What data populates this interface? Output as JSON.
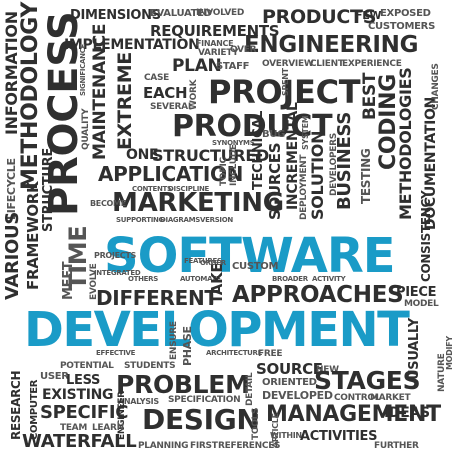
{
  "words": {
    "software": "SOFTWARE",
    "development": "DEVELOPMENT",
    "engineering": "ENGINEERING",
    "project": "PROJECT",
    "product": "PRODUCT",
    "process": "PROCESS",
    "application": "APPLICATION",
    "marketing": "MARKETING",
    "design": "DESIGN",
    "management": "MANAGEMENT",
    "problem": "PROBLEM",
    "stages": "STAGES",
    "approaches": "APPROACHES",
    "different": "DIFFERENT",
    "methodology": "METHODOLOGY",
    "information": "INFORMATION",
    "products": "PRODUCTS",
    "requirements": "REQUIREMENTS",
    "implementation": "IMPLEMENTATION",
    "maintenance": "MAINTENANCE",
    "extreme": "EXTREME",
    "plan": "PLAN",
    "each": "EACH",
    "structured": "STRUCTURED",
    "business": "BUSINESS",
    "methodologies": "METHODOLOGIES",
    "coding": "CODING",
    "testing": "TESTING",
    "documentation": "DOCUMENTATION",
    "consistency": "CONSISTENCY",
    "structure": "STRUCTURE",
    "framework": "FRAMEWORK",
    "various": "VARIOUS",
    "lifecycle": "LIFECYCLE",
    "research": "RESEARCH",
    "waterfall": "WATERFALL",
    "specific": "SPECIFIC",
    "existing": "EXISTING",
    "less": "LESS",
    "source": "SOURCE",
    "piece": "PIECE",
    "ideas": "IDEAS",
    "time": "TIME",
    "sources": "SOURCES",
    "solution": "SOLUTION",
    "technical": "TECHNICAL",
    "incremental": "INCREMENTAL",
    "developed": "DEVELOPED",
    "activities": "ACTIVITIES",
    "oriented": "ORIENTED",
    "dimensions": "DIMENSIONS",
    "evaluated": "EVALUATED",
    "involved": "INVOLVED",
    "few": "FEW",
    "exposed": "EXPOSED",
    "customers": "CUSTOMERS",
    "overview": "OVERVIEW",
    "client": "CLIENT",
    "experience": "EXPERIENCE",
    "best": "BEST",
    "learn": "LEARN",
    "team": "TEAM",
    "planning": "PLANNING",
    "first": "FIRST",
    "references": "REFERENCES",
    "market": "MARKET",
    "new": "NEW",
    "control": "CONTROL",
    "specification": "SPECIFICATION",
    "custom": "CUSTOM",
    "free": "FREE",
    "detail": "DETAIL",
    "usually": "USUALLY",
    "model": "MODEL",
    "potential": "POTENTIAL",
    "students": "STUDENTS",
    "ensure": "ENSURE",
    "phase": "PHASE",
    "take": "TAKE",
    "meet": "MEET",
    "several": "SEVERAL",
    "staff": "STAFF",
    "case": "CASE",
    "bug": "BUG",
    "one": "ONE",
    "further": "FURTHER",
    "engineer": "ENGINEER",
    "user": "USER",
    "computer": "COMPUTER",
    "analysis": "ANALYSIS",
    "tools": "TOOLS",
    "developers": "DEVELOPERS",
    "quality": "QUALITY",
    "significance": "SIGNIFICANCE",
    "changes": "CHANGES",
    "evolve": "EVOLVE",
    "become": "BECOME",
    "topic": "TOPIC",
    "include": "INCLUDE",
    "system": "SYSTEM",
    "deployment": "DEPLOYMENT",
    "finance": "FINANCE",
    "variety": "VARIETY",
    "over": "OVER",
    "work": "WORK",
    "article": "ARTICLE",
    "spent": "SPENT",
    "within": "WITHIN",
    "contents": "CONTENTS",
    "diagrams": "DIAGRAMS",
    "discipline": "DISCIPLINE",
    "supporting": "SUPPORTING",
    "order": "ORDER",
    "synonyms": "SYNONYMS",
    "features": "FEATURES",
    "projects": "PROJECTS",
    "integrated": "INTEGRATED",
    "others": "OTHERS",
    "automate": "AUTOMATE",
    "version": "VERSION",
    "broader": "BROADER",
    "activity": "ACTIVITY",
    "effective": "EFFECTIVE",
    "architecture": "ARCHITECTURE",
    "modify": "MODIFY",
    "nature": "NATURE"
  }
}
